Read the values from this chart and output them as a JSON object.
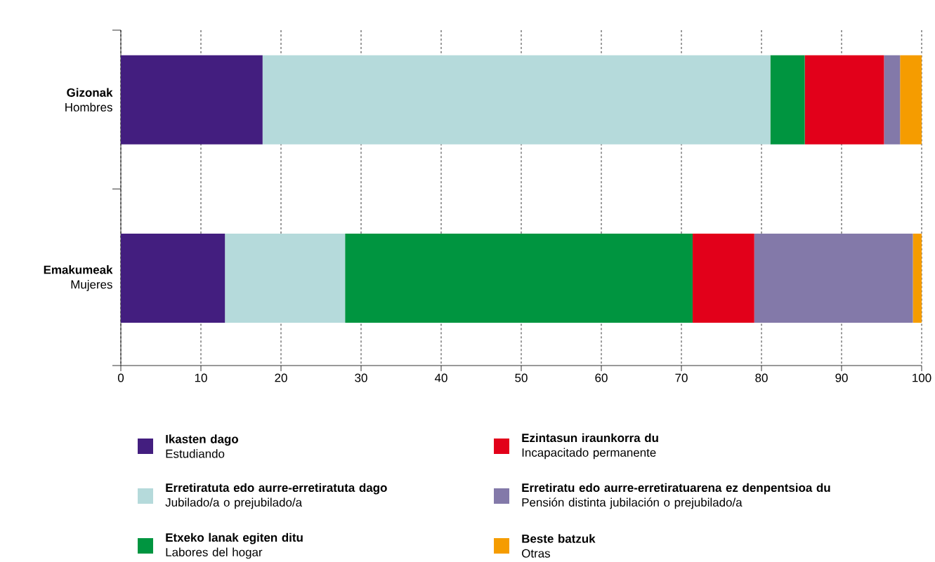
{
  "chart_data": {
    "type": "bar",
    "orientation": "horizontal",
    "stacked": true,
    "categories": [
      "**Gizonak** Hombres",
      "**Emakumeak** Mujeres"
    ],
    "series": [
      {
        "name": "**Ikasten dago** Estudiando",
        "color": "#431e7f",
        "values": [
          17.7,
          13.0
        ]
      },
      {
        "name": "**Erretiratuta edo aurre-erretiratuta dago** Jubilado/a o prejubilado/a",
        "color": "#b5dadb",
        "values": [
          63.4,
          15.0
        ]
      },
      {
        "name": "**Etxeko lanak egiten ditu** Labores del hogar",
        "color": "#009540",
        "values": [
          4.3,
          43.4
        ]
      },
      {
        "name": "**Ezintasun iraunkorra du** Incapacitado permanente",
        "color": "#e2001a",
        "values": [
          9.9,
          7.7
        ]
      },
      {
        "name": "**Erretiratu edo aurre-erretiratuarena ez denpentsioa du** Pensión distinta jubilación o prejubilado/a",
        "color": "#8379a9",
        "values": [
          2.0,
          19.8
        ]
      },
      {
        "name": "**Beste batzuk** Otras",
        "color": "#f59c00",
        "values": [
          2.7,
          1.1
        ]
      }
    ],
    "xlim": [
      0,
      100
    ],
    "xticks": [
      0,
      10,
      20,
      30,
      40,
      50,
      60,
      70,
      80,
      90,
      100
    ],
    "grid": "x",
    "legend": "bottom"
  }
}
